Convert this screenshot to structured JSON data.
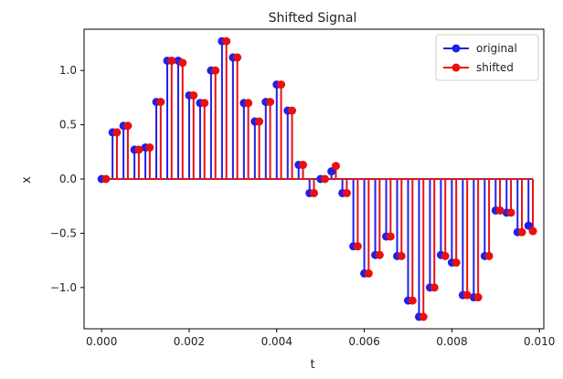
{
  "chart_data": {
    "type": "stem",
    "title": "Shifted Signal",
    "xlabel": "t",
    "ylabel": "x",
    "xlim": [
      -0.0004,
      0.0101
    ],
    "ylim": [
      -1.38,
      1.38
    ],
    "xticks": [
      0.0,
      0.002,
      0.004,
      0.006,
      0.008,
      0.01
    ],
    "xtick_labels": [
      "0.000",
      "0.002",
      "0.004",
      "0.006",
      "0.008",
      "0.010"
    ],
    "yticks": [
      -1.0,
      -0.5,
      0.0,
      0.5,
      1.0
    ],
    "ytick_labels": [
      "−1.0",
      "−0.5",
      "0.0",
      "0.5",
      "1.0"
    ],
    "legend_position": "top-right",
    "grid": false,
    "x": [
      0.0,
      0.00025,
      0.0005,
      0.00075,
      0.001,
      0.00125,
      0.0015,
      0.00175,
      0.002,
      0.00225,
      0.0025,
      0.00275,
      0.003,
      0.00325,
      0.0035,
      0.00375,
      0.004,
      0.00425,
      0.0045,
      0.00475,
      0.005,
      0.00525,
      0.0055,
      0.00575,
      0.006,
      0.00625,
      0.0065,
      0.00675,
      0.007,
      0.00725,
      0.0075,
      0.00775,
      0.008,
      0.00825,
      0.0085,
      0.00875,
      0.009,
      0.00925,
      0.0095,
      0.00975
    ],
    "series": [
      {
        "name": "original",
        "color": "#2020e8",
        "offset": 0.0,
        "values": [
          0.0,
          0.43,
          0.49,
          0.27,
          0.29,
          0.71,
          1.09,
          1.09,
          0.77,
          0.7,
          1.0,
          1.27,
          1.12,
          0.7,
          0.53,
          0.71,
          0.87,
          0.63,
          0.13,
          -0.13,
          0.0,
          0.07,
          -0.13,
          -0.62,
          -0.87,
          -0.7,
          -0.53,
          -0.71,
          -1.12,
          -1.27,
          -1.0,
          -0.7,
          -0.77,
          -1.07,
          -1.09,
          -0.71,
          -0.29,
          -0.31,
          -0.49,
          -0.43
        ]
      },
      {
        "name": "shifted",
        "color": "#e81010",
        "offset": 0.0001,
        "values": [
          0.0,
          0.43,
          0.49,
          0.27,
          0.29,
          0.71,
          1.09,
          1.07,
          0.77,
          0.7,
          1.0,
          1.27,
          1.12,
          0.7,
          0.53,
          0.71,
          0.87,
          0.63,
          0.13,
          -0.13,
          0.0,
          0.12,
          -0.13,
          -0.62,
          -0.87,
          -0.7,
          -0.53,
          -0.71,
          -1.12,
          -1.27,
          -1.0,
          -0.71,
          -0.77,
          -1.07,
          -1.09,
          -0.71,
          -0.29,
          -0.31,
          -0.49,
          -0.48
        ]
      }
    ],
    "baseline_color": "#c81c2c"
  }
}
